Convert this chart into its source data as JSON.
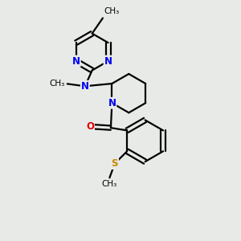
{
  "bg_color": "#e8eae8",
  "bond_color": "#000000",
  "bond_width": 1.6,
  "atom_colors": {
    "N": "#0000ee",
    "O": "#dd0000",
    "S": "#cc8800",
    "C": "#000000"
  },
  "fig_size": [
    3.0,
    3.0
  ],
  "dpi": 100,
  "xlim": [
    0,
    10
  ],
  "ylim": [
    0,
    10
  ]
}
